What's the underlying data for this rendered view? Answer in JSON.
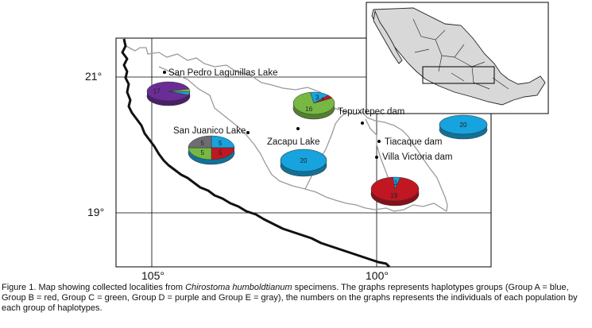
{
  "axes": {
    "lat_labels": [
      "21°",
      "19°"
    ],
    "lon_labels": [
      "105°",
      "100°"
    ]
  },
  "localities": {
    "san_pedro": "San Pedro Lagunillas Lake",
    "san_juanico": "San Juanico Lake",
    "zacapu": "Zacapu Lake",
    "tepuxtepec": "Tepuxtepec dam",
    "tiacaque": "Tiacaque dam",
    "villa_victoria": "Villa Victoria dam"
  },
  "group_colors": {
    "A": "#16a3de",
    "B": "#c01722",
    "C": "#76b843",
    "D": "#6a2d96",
    "E": "#6d6e71"
  },
  "pies": {
    "san_pedro": [
      {
        "group": "C",
        "value": 1,
        "label": ""
      },
      {
        "group": "A",
        "value": 1,
        "label": ""
      },
      {
        "group": "D",
        "value": 17,
        "label": "17"
      }
    ],
    "san_juanico": [
      {
        "group": "A",
        "value": 5,
        "label": "5"
      },
      {
        "group": "B",
        "value": 5,
        "label": "5"
      },
      {
        "group": "C",
        "value": 5,
        "label": "5"
      },
      {
        "group": "E",
        "value": 5,
        "label": "5"
      }
    ],
    "tepuxtepec": [
      {
        "group": "A",
        "value": 3,
        "label": "3"
      },
      {
        "group": "B",
        "value": 1,
        "label": "1"
      },
      {
        "group": "C",
        "value": 16,
        "label": "16"
      }
    ],
    "zacapu": [
      {
        "group": "A",
        "value": 20,
        "label": "20"
      }
    ],
    "east": [
      {
        "group": "A",
        "value": 20,
        "label": "20"
      }
    ],
    "villa_victoria": [
      {
        "group": "A",
        "value": 1,
        "label": "1"
      },
      {
        "group": "B",
        "value": 19,
        "label": "19"
      }
    ]
  },
  "caption": {
    "prefix": "Figure 1. Map showing collected localities from ",
    "species": "Chirostoma humboldtianum",
    "suffix": " specimens. The graphs represents haplotypes groups (Group A = blue, Group B = red, Group C = green, Group D = purple and Group E = gray), the numbers on the graphs represents the individuals of each population by each group of haplotypes."
  }
}
